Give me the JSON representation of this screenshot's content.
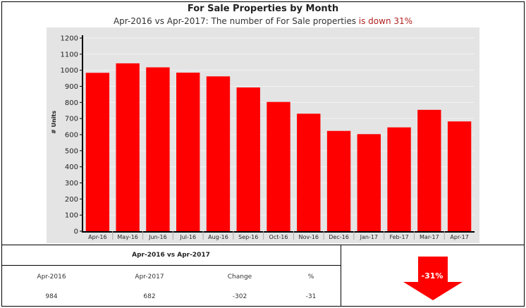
{
  "title": "For Sale Properties by Month",
  "subtitle": {
    "prefix": "Apr-2016 vs Apr-2017: The number of For Sale properties ",
    "highlight": "is down 31%"
  },
  "colors": {
    "bar": "#ff0000",
    "plot_background": "#e4e4e4",
    "negative": "#b22222",
    "arrow": "#ff0000"
  },
  "chart_data": {
    "type": "bar",
    "title": "For Sale Properties by Month",
    "xlabel": "",
    "ylabel": "# Units",
    "ylim": [
      0,
      1200
    ],
    "yticks": [
      0,
      100,
      200,
      300,
      400,
      500,
      600,
      700,
      800,
      900,
      1000,
      1100,
      1200
    ],
    "grid": true,
    "categories": [
      "Apr-16",
      "May-16",
      "Jun-16",
      "Jul-16",
      "Aug-16",
      "Sep-16",
      "Oct-16",
      "Nov-16",
      "Dec-16",
      "Jan-17",
      "Feb-17",
      "Mar-17",
      "Apr-17"
    ],
    "values": [
      984,
      1043,
      1018,
      985,
      962,
      893,
      803,
      730,
      623,
      603,
      645,
      754,
      682
    ]
  },
  "comparison": {
    "title": "Apr-2016 vs Apr-2017",
    "headers": [
      "Apr-2016",
      "Apr-2017",
      "Change",
      "%"
    ],
    "values": [
      "984",
      "682",
      "-302",
      "-31"
    ]
  },
  "indicator": {
    "label": "-31%",
    "direction": "down",
    "icon": "down-arrow-icon"
  }
}
